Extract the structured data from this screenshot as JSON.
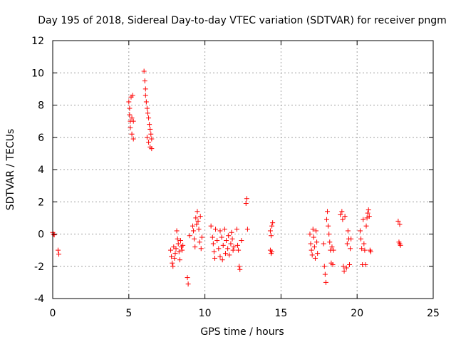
{
  "chart_data": {
    "type": "scatter",
    "title": "Day 195 of 2018, Sidereal Day-to-day VTEC variation (SDTVAR) for receiver pngm",
    "xlabel": "GPS time / hours",
    "ylabel": "SDTVAR / TECUs",
    "xlim": [
      0,
      25
    ],
    "ylim": [
      -4,
      12
    ],
    "xticks": [
      0,
      5,
      10,
      15,
      20,
      25
    ],
    "yticks": [
      -4,
      -2,
      0,
      2,
      4,
      6,
      8,
      10,
      12
    ],
    "grid": true,
    "marker": "plus",
    "color": "#ff0000",
    "series": [
      {
        "name": "SDTVAR",
        "points": [
          [
            0.0,
            0.1
          ],
          [
            0.05,
            0.0
          ],
          [
            0.1,
            -0.05
          ],
          [
            0.35,
            -1.0
          ],
          [
            0.4,
            -1.25
          ],
          [
            5.0,
            8.2
          ],
          [
            5.05,
            7.8
          ],
          [
            5.05,
            7.4
          ],
          [
            5.1,
            7.0
          ],
          [
            5.1,
            6.6
          ],
          [
            5.15,
            8.5
          ],
          [
            5.2,
            7.2
          ],
          [
            5.2,
            6.2
          ],
          [
            5.25,
            8.6
          ],
          [
            5.3,
            5.9
          ],
          [
            5.3,
            7.0
          ],
          [
            6.0,
            10.1
          ],
          [
            6.05,
            9.5
          ],
          [
            6.1,
            9.0
          ],
          [
            6.1,
            8.6
          ],
          [
            6.15,
            8.2
          ],
          [
            6.2,
            7.8
          ],
          [
            6.2,
            6.0
          ],
          [
            6.25,
            7.5
          ],
          [
            6.3,
            7.2
          ],
          [
            6.3,
            5.7
          ],
          [
            6.35,
            6.8
          ],
          [
            6.4,
            6.5
          ],
          [
            6.4,
            5.4
          ],
          [
            6.45,
            6.2
          ],
          [
            6.5,
            5.3
          ],
          [
            6.5,
            5.9
          ],
          [
            7.75,
            -1.0
          ],
          [
            7.8,
            -1.4
          ],
          [
            7.85,
            -1.8
          ],
          [
            7.9,
            -2.0
          ],
          [
            7.95,
            -0.8
          ],
          [
            8.0,
            -1.5
          ],
          [
            8.05,
            -1.2
          ],
          [
            8.1,
            -0.9
          ],
          [
            8.15,
            0.2
          ],
          [
            8.2,
            -0.3
          ],
          [
            8.25,
            -0.6
          ],
          [
            8.3,
            -1.1
          ],
          [
            8.35,
            -1.6
          ],
          [
            8.4,
            -0.4
          ],
          [
            8.45,
            -0.8
          ],
          [
            8.5,
            -1.0
          ],
          [
            8.55,
            -0.7
          ],
          [
            8.85,
            -2.7
          ],
          [
            8.9,
            -3.1
          ],
          [
            9.0,
            -0.1
          ],
          [
            9.2,
            0.5
          ],
          [
            9.25,
            0.2
          ],
          [
            9.3,
            -0.3
          ],
          [
            9.35,
            -0.8
          ],
          [
            9.4,
            1.0
          ],
          [
            9.45,
            0.6
          ],
          [
            9.5,
            1.4
          ],
          [
            9.55,
            0.8
          ],
          [
            9.6,
            0.3
          ],
          [
            9.65,
            -0.5
          ],
          [
            9.7,
            1.1
          ],
          [
            9.75,
            -0.9
          ],
          [
            9.8,
            -0.2
          ],
          [
            10.4,
            0.5
          ],
          [
            10.5,
            -0.2
          ],
          [
            10.55,
            -0.6
          ],
          [
            10.6,
            -1.1
          ],
          [
            10.65,
            -1.5
          ],
          [
            10.7,
            0.3
          ],
          [
            10.8,
            -0.4
          ],
          [
            10.9,
            -0.9
          ],
          [
            11.0,
            -1.4
          ],
          [
            11.0,
            0.2
          ],
          [
            11.1,
            -0.2
          ],
          [
            11.15,
            -1.6
          ],
          [
            11.2,
            -0.7
          ],
          [
            11.3,
            0.3
          ],
          [
            11.35,
            -1.2
          ],
          [
            11.4,
            -0.4
          ],
          [
            11.5,
            -0.9
          ],
          [
            11.55,
            -0.1
          ],
          [
            11.6,
            -1.3
          ],
          [
            11.7,
            -0.6
          ],
          [
            11.75,
            0.1
          ],
          [
            11.8,
            -0.3
          ],
          [
            11.85,
            -1.0
          ],
          [
            11.9,
            -0.8
          ],
          [
            12.1,
            0.3
          ],
          [
            12.15,
            -0.7
          ],
          [
            12.2,
            -1.0
          ],
          [
            12.25,
            -2.0
          ],
          [
            12.3,
            -2.2
          ],
          [
            12.4,
            -0.4
          ],
          [
            12.7,
            1.9
          ],
          [
            12.75,
            2.2
          ],
          [
            12.8,
            0.3
          ],
          [
            14.3,
            0.2
          ],
          [
            14.35,
            -0.1
          ],
          [
            14.4,
            0.5
          ],
          [
            14.45,
            0.7
          ],
          [
            14.3,
            -1.0
          ],
          [
            14.35,
            -1.2
          ],
          [
            14.4,
            -1.1
          ],
          [
            16.9,
            0.0
          ],
          [
            16.95,
            -0.6
          ],
          [
            17.0,
            -1.0
          ],
          [
            17.05,
            -1.3
          ],
          [
            17.1,
            0.3
          ],
          [
            17.15,
            -0.2
          ],
          [
            17.2,
            -0.8
          ],
          [
            17.25,
            -1.5
          ],
          [
            17.3,
            0.2
          ],
          [
            17.35,
            -0.5
          ],
          [
            17.4,
            -1.2
          ],
          [
            17.8,
            -0.6
          ],
          [
            17.85,
            -2.0
          ],
          [
            17.9,
            -2.5
          ],
          [
            17.95,
            -3.0
          ],
          [
            18.0,
            0.9
          ],
          [
            18.05,
            1.4
          ],
          [
            18.1,
            0.5
          ],
          [
            18.15,
            0.0
          ],
          [
            18.2,
            -0.5
          ],
          [
            18.25,
            -1.0
          ],
          [
            18.3,
            -1.8
          ],
          [
            18.35,
            -0.8
          ],
          [
            18.4,
            -1.9
          ],
          [
            18.45,
            -1.0
          ],
          [
            18.9,
            1.2
          ],
          [
            19.0,
            1.4
          ],
          [
            19.05,
            0.9
          ],
          [
            19.1,
            -2.0
          ],
          [
            19.15,
            -2.3
          ],
          [
            19.2,
            1.1
          ],
          [
            19.3,
            -2.1
          ],
          [
            19.35,
            -0.6
          ],
          [
            19.4,
            0.2
          ],
          [
            19.45,
            -0.3
          ],
          [
            19.5,
            -1.9
          ],
          [
            19.55,
            -0.9
          ],
          [
            19.6,
            -0.3
          ],
          [
            20.2,
            0.2
          ],
          [
            20.25,
            -0.3
          ],
          [
            20.3,
            -0.9
          ],
          [
            20.35,
            -1.9
          ],
          [
            20.4,
            0.9
          ],
          [
            20.45,
            -0.6
          ],
          [
            20.5,
            -1.0
          ],
          [
            20.55,
            -1.9
          ],
          [
            20.6,
            0.5
          ],
          [
            20.65,
            1.0
          ],
          [
            20.7,
            1.3
          ],
          [
            20.75,
            1.5
          ],
          [
            20.8,
            1.1
          ],
          [
            20.85,
            -1.0
          ],
          [
            20.9,
            -1.1
          ],
          [
            22.7,
            0.8
          ],
          [
            22.75,
            -0.5
          ],
          [
            22.8,
            -0.6
          ],
          [
            22.85,
            -0.7
          ],
          [
            22.8,
            0.6
          ]
        ]
      }
    ]
  }
}
